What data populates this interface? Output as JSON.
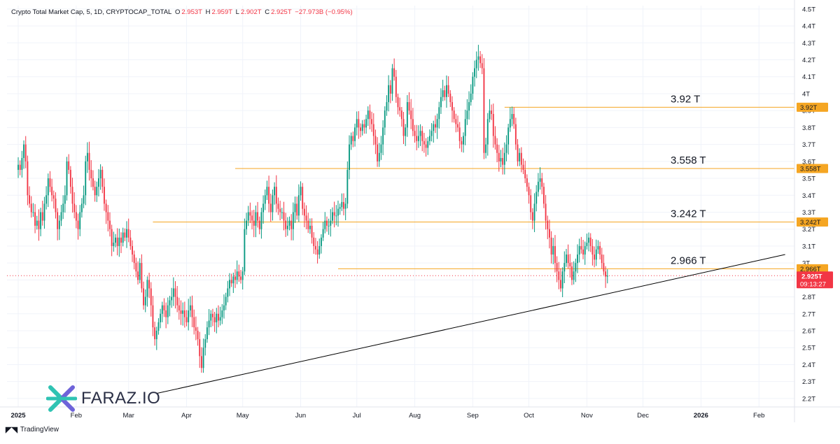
{
  "header": {
    "symbol": "Crypto Total Market Cap, 5, 1D, CRYPTOCAP_TOTAL",
    "o_label": "O",
    "o_value": "2.953T",
    "h_label": "H",
    "h_value": "2.959T",
    "l_label": "L",
    "l_value": "2.902T",
    "c_label": "C",
    "c_value": "2.925T",
    "change": "−27.973B (−0.95%)"
  },
  "branding": {
    "logo_text": "FARAZ.IO",
    "footer": "TradingView"
  },
  "price_tag": {
    "price": "2.925T",
    "countdown": "09:13:27"
  },
  "colors": {
    "up": "#089981",
    "down": "#f23645",
    "level": "#f5a623",
    "trend": "#000000",
    "grid": "#f0f3fa"
  },
  "chart_data": {
    "type": "candlestick",
    "title": "Crypto Total Market Cap, 5, 1D, CRYPTOCAP_TOTAL",
    "ylim": [
      2.15,
      4.52
    ],
    "y_unit": "T",
    "y_ticks": [
      "2.2T",
      "2.3T",
      "2.4T",
      "2.5T",
      "2.6T",
      "2.7T",
      "2.8T",
      "2.9T",
      "3T",
      "3.1T",
      "3.2T",
      "3.3T",
      "3.4T",
      "3.5T",
      "3.6T",
      "3.7T",
      "3.8T",
      "3.9T",
      "4T",
      "4.1T",
      "4.2T",
      "4.3T",
      "4.4T",
      "4.5T"
    ],
    "x_ticks": [
      "2025",
      "Feb",
      "Mar",
      "Apr",
      "May",
      "Jun",
      "Jul",
      "Aug",
      "Sep",
      "Oct",
      "Nov",
      "Dec",
      "2026",
      "Feb"
    ],
    "x_range_days": [
      -6,
      415
    ],
    "x_tick_days": [
      0,
      31,
      59,
      90,
      120,
      151,
      181,
      212,
      243,
      273,
      304,
      334,
      365,
      396
    ],
    "levels": [
      {
        "value": 3.92,
        "label": "3.92 T",
        "axis_label": "3.92T",
        "start_day": 260
      },
      {
        "value": 3.558,
        "label": "3.558 T",
        "axis_label": "3.558T",
        "start_day": 116
      },
      {
        "value": 3.242,
        "label": "3.242 T",
        "axis_label": "3.242T",
        "start_day": 72
      },
      {
        "value": 2.966,
        "label": "2.966 T",
        "axis_label": "2.966T",
        "start_day": 171
      }
    ],
    "trendline": {
      "start_day": 74,
      "start_value": 2.23,
      "end_day": 410,
      "end_value": 3.05
    },
    "last_close": 2.925,
    "closes": [
      3.58,
      3.55,
      3.62,
      3.7,
      3.6,
      3.4,
      3.35,
      3.3,
      3.3,
      3.22,
      3.25,
      3.2,
      3.3,
      3.25,
      3.35,
      3.4,
      3.5,
      3.45,
      3.4,
      3.38,
      3.3,
      3.2,
      3.25,
      3.3,
      3.35,
      3.4,
      3.6,
      3.55,
      3.45,
      3.35,
      3.3,
      3.25,
      3.2,
      3.3,
      3.35,
      3.4,
      3.6,
      3.65,
      3.55,
      3.5,
      3.45,
      3.4,
      3.45,
      3.5,
      3.55,
      3.45,
      3.35,
      3.3,
      3.25,
      3.2,
      3.1,
      3.12,
      3.15,
      3.1,
      3.15,
      3.12,
      3.18,
      3.15,
      3.2,
      3.15,
      3.1,
      3.05,
      3.0,
      2.95,
      2.9,
      3.0,
      2.85,
      2.75,
      2.8,
      2.9,
      2.85,
      2.75,
      2.62,
      2.55,
      2.6,
      2.65,
      2.7,
      2.75,
      2.72,
      2.68,
      2.75,
      2.78,
      2.8,
      2.85,
      2.8,
      2.75,
      2.72,
      2.7,
      2.72,
      2.68,
      2.65,
      2.72,
      2.75,
      2.68,
      2.62,
      2.6,
      2.55,
      2.45,
      2.38,
      2.5,
      2.55,
      2.62,
      2.66,
      2.7,
      2.68,
      2.65,
      2.7,
      2.66,
      2.68,
      2.72,
      2.75,
      2.8,
      2.85,
      2.9,
      2.88,
      2.92,
      2.9,
      2.95,
      2.92,
      2.9,
      2.95,
      3.2,
      3.25,
      3.3,
      3.28,
      3.25,
      3.22,
      3.3,
      3.25,
      3.2,
      3.3,
      3.35,
      3.4,
      3.45,
      3.35,
      3.3,
      3.4,
      3.45,
      3.35,
      3.32,
      3.3,
      3.3,
      3.25,
      3.2,
      3.22,
      3.25,
      3.2,
      3.3,
      3.35,
      3.28,
      3.4,
      3.45,
      3.32,
      3.28,
      3.25,
      3.2,
      3.22,
      3.15,
      3.1,
      3.08,
      3.05,
      3.1,
      3.15,
      3.2,
      3.25,
      3.22,
      3.22,
      3.25,
      3.3,
      3.28,
      3.28,
      3.32,
      3.33,
      3.36,
      3.32,
      3.35,
      3.55,
      3.7,
      3.75,
      3.72,
      3.8,
      3.85,
      3.8,
      3.78,
      3.82,
      3.8,
      3.85,
      3.9,
      3.85,
      3.82,
      3.75,
      3.7,
      3.6,
      3.65,
      3.7,
      3.8,
      3.9,
      3.95,
      4.05,
      4.0,
      4.15,
      4.1,
      3.98,
      3.92,
      3.9,
      3.85,
      3.75,
      3.8,
      3.95,
      3.9,
      3.85,
      3.78,
      3.75,
      3.72,
      3.75,
      3.78,
      3.72,
      3.7,
      3.68,
      3.72,
      3.75,
      3.78,
      3.82,
      3.8,
      3.85,
      3.92,
      3.98,
      4.02,
      3.98,
      4.05,
      4.0,
      3.95,
      3.9,
      3.85,
      3.82,
      3.8,
      3.72,
      3.7,
      3.75,
      3.85,
      3.9,
      3.95,
      4.0,
      4.1,
      4.15,
      4.2,
      4.22,
      4.18,
      4.15,
      3.65,
      3.7,
      3.85,
      3.9,
      3.88,
      3.75,
      3.7,
      3.65,
      3.6,
      3.62,
      3.58,
      3.65,
      3.7,
      3.8,
      3.85,
      3.88,
      3.82,
      3.7,
      3.6,
      3.65,
      3.58,
      3.55,
      3.5,
      3.45,
      3.4,
      3.3,
      3.25,
      3.35,
      3.42,
      3.48,
      3.5,
      3.45,
      3.35,
      3.25,
      3.2,
      3.15,
      3.05,
      3.1,
      3.0,
      2.95,
      2.9,
      2.85,
      2.95,
      3.0,
      3.05,
      3.0,
      2.98,
      2.9,
      2.95,
      3.0,
      3.05,
      3.1,
      3.08,
      3.05,
      3.1,
      3.12,
      3.15,
      3.1,
      3.05,
      3.02,
      3.08,
      3.1,
      3.05,
      3.0,
      2.95,
      2.92,
      2.925
    ]
  }
}
